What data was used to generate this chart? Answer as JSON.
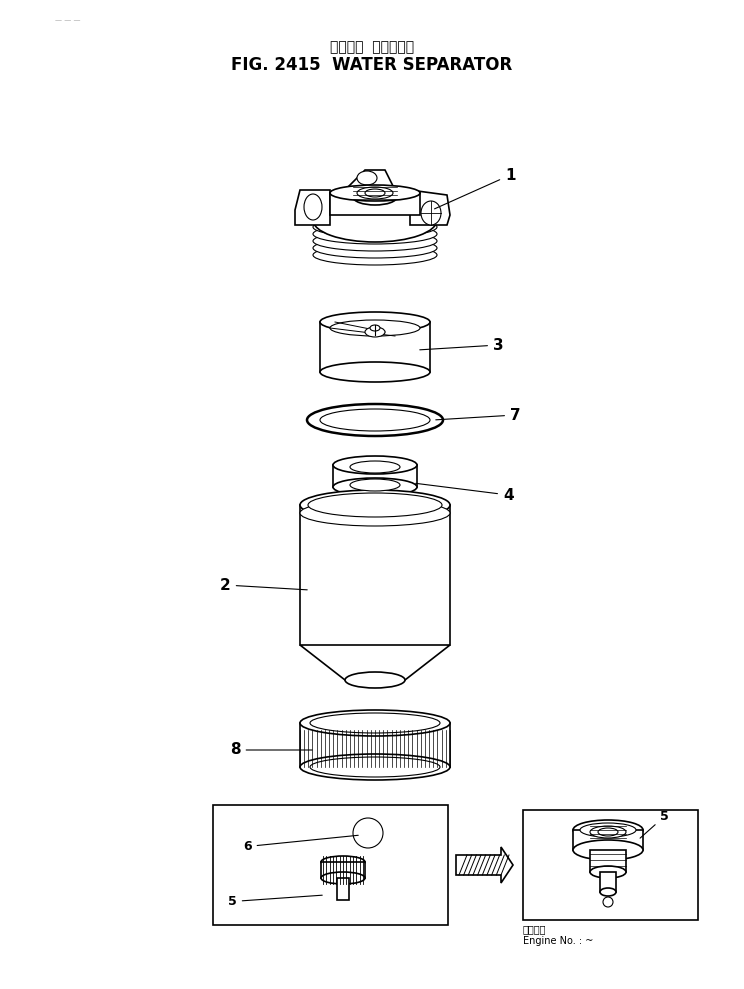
{
  "title_japanese": "ウォータ  セパレータ",
  "title_english": "FIG. 2415  WATER SEPARATOR",
  "background_color": "#ffffff",
  "line_color": "#000000",
  "fig_width": 7.44,
  "fig_height": 9.89,
  "dpi": 100,
  "engine_note_line1": "適用番号",
  "engine_note_line2": "Engine No. : ~"
}
